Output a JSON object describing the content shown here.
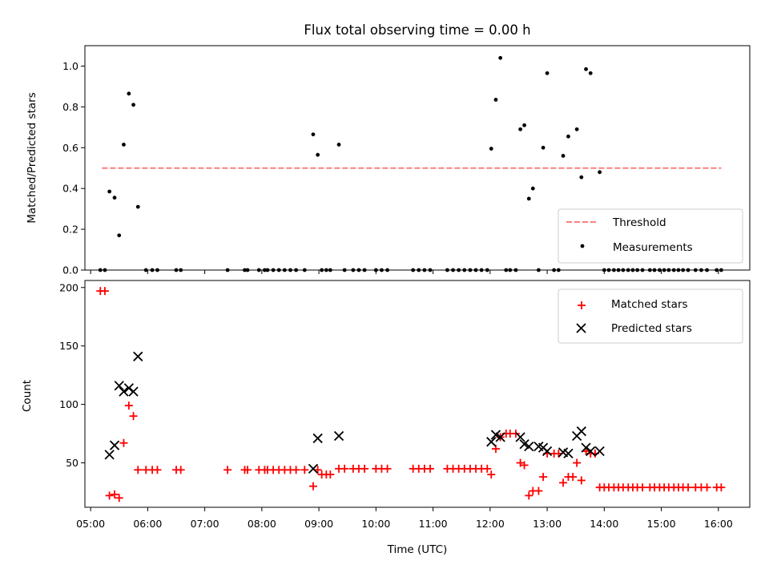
{
  "colors": {
    "threshold": "#ff7f7f",
    "measurement": "#000000",
    "matched": "#ff0000",
    "predicted": "#000000"
  },
  "chart_data": [
    {
      "type": "scatter",
      "title": "Flux total observing time = 0.00 h",
      "xlabel": "",
      "ylabel": "Matched/Predicted stars",
      "x_unit": "hours UTC",
      "xlim": [
        4.9,
        16.55
      ],
      "ylim": [
        0,
        1.1
      ],
      "yticks": [
        0.0,
        0.2,
        0.4,
        0.6,
        0.8,
        1.0
      ],
      "ytick_labels": [
        "0.0",
        "0.2",
        "0.4",
        "0.6",
        "0.8",
        "1.0"
      ],
      "legend_position": "lower right",
      "series": [
        {
          "name": "Threshold",
          "style": "dashed-line",
          "x": [
            5.2,
            16.05
          ],
          "values": [
            0.5,
            0.5
          ]
        },
        {
          "name": "Measurements",
          "style": "dot",
          "points": [
            [
              5.17,
              0
            ],
            [
              5.25,
              0
            ],
            [
              5.33,
              0.385
            ],
            [
              5.42,
              0.355
            ],
            [
              5.5,
              0.17
            ],
            [
              5.58,
              0.615
            ],
            [
              5.67,
              0.865
            ],
            [
              5.75,
              0.81
            ],
            [
              5.83,
              0.31
            ],
            [
              5.97,
              0
            ],
            [
              6.08,
              0
            ],
            [
              6.17,
              0
            ],
            [
              6.5,
              0
            ],
            [
              6.58,
              0
            ],
            [
              7.4,
              0
            ],
            [
              7.7,
              0
            ],
            [
              7.75,
              0
            ],
            [
              7.95,
              0
            ],
            [
              8.05,
              0
            ],
            [
              8.1,
              0
            ],
            [
              8.2,
              0
            ],
            [
              8.3,
              0
            ],
            [
              8.4,
              0
            ],
            [
              8.5,
              0
            ],
            [
              8.6,
              0
            ],
            [
              8.75,
              0
            ],
            [
              8.9,
              0.665
            ],
            [
              8.98,
              0.565
            ],
            [
              9.05,
              0
            ],
            [
              9.13,
              0
            ],
            [
              9.2,
              0
            ],
            [
              9.35,
              0.615
            ],
            [
              9.45,
              0
            ],
            [
              9.6,
              0
            ],
            [
              9.7,
              0
            ],
            [
              9.8,
              0
            ],
            [
              10.0,
              0
            ],
            [
              10.1,
              0
            ],
            [
              10.2,
              0
            ],
            [
              10.65,
              0
            ],
            [
              10.75,
              0
            ],
            [
              10.85,
              0
            ],
            [
              10.95,
              0
            ],
            [
              11.25,
              0
            ],
            [
              11.35,
              0
            ],
            [
              11.45,
              0
            ],
            [
              11.55,
              0
            ],
            [
              11.65,
              0
            ],
            [
              11.75,
              0
            ],
            [
              11.85,
              0
            ],
            [
              11.95,
              0
            ],
            [
              12.02,
              0.595
            ],
            [
              12.1,
              0.835
            ],
            [
              12.18,
              1.04
            ],
            [
              12.28,
              0
            ],
            [
              12.35,
              0
            ],
            [
              12.45,
              0
            ],
            [
              12.53,
              0.69
            ],
            [
              12.6,
              0.71
            ],
            [
              12.68,
              0.35
            ],
            [
              12.75,
              0.4
            ],
            [
              12.85,
              0
            ],
            [
              12.93,
              0.6
            ],
            [
              13.0,
              0.965
            ],
            [
              13.12,
              0
            ],
            [
              13.2,
              0
            ],
            [
              13.28,
              0.56
            ],
            [
              13.37,
              0.655
            ],
            [
              13.52,
              0.69
            ],
            [
              13.6,
              0.455
            ],
            [
              13.68,
              0.985
            ],
            [
              13.76,
              0.965
            ],
            [
              13.92,
              0.48
            ],
            [
              14.0,
              0
            ],
            [
              14.08,
              0
            ],
            [
              14.17,
              0
            ],
            [
              14.25,
              0
            ],
            [
              14.33,
              0
            ],
            [
              14.42,
              0
            ],
            [
              14.5,
              0
            ],
            [
              14.58,
              0
            ],
            [
              14.67,
              0
            ],
            [
              14.8,
              0
            ],
            [
              14.88,
              0
            ],
            [
              14.97,
              0
            ],
            [
              15.05,
              0
            ],
            [
              15.13,
              0
            ],
            [
              15.22,
              0
            ],
            [
              15.3,
              0
            ],
            [
              15.38,
              0
            ],
            [
              15.47,
              0
            ],
            [
              15.6,
              0
            ],
            [
              15.7,
              0
            ],
            [
              15.8,
              0
            ],
            [
              15.97,
              0
            ],
            [
              16.05,
              0
            ]
          ]
        }
      ]
    },
    {
      "type": "scatter",
      "title": "",
      "xlabel": "Time (UTC)",
      "ylabel": "Count",
      "x_unit": "hours UTC",
      "xlim": [
        4.9,
        16.55
      ],
      "ylim": [
        12,
        206
      ],
      "yticks": [
        50,
        100,
        150,
        200
      ],
      "ytick_labels": [
        "50",
        "100",
        "150",
        "200"
      ],
      "xticks": [
        5,
        6,
        7,
        8,
        9,
        10,
        11,
        12,
        13,
        14,
        15,
        16
      ],
      "xtick_labels": [
        "05:00",
        "06:00",
        "07:00",
        "08:00",
        "09:00",
        "10:00",
        "11:00",
        "12:00",
        "13:00",
        "14:00",
        "15:00",
        "16:00"
      ],
      "legend_position": "upper right",
      "series": [
        {
          "name": "Matched stars",
          "style": "plus",
          "points": [
            [
              5.17,
              197
            ],
            [
              5.25,
              197
            ],
            [
              5.33,
              22
            ],
            [
              5.42,
              23
            ],
            [
              5.5,
              20
            ],
            [
              5.58,
              67
            ],
            [
              5.67,
              99
            ],
            [
              5.75,
              90
            ],
            [
              5.83,
              44
            ],
            [
              5.97,
              44
            ],
            [
              6.08,
              44
            ],
            [
              6.17,
              44
            ],
            [
              6.5,
              44
            ],
            [
              6.58,
              44
            ],
            [
              7.4,
              44
            ],
            [
              7.7,
              44
            ],
            [
              7.75,
              44
            ],
            [
              7.95,
              44
            ],
            [
              8.05,
              44
            ],
            [
              8.1,
              44
            ],
            [
              8.2,
              44
            ],
            [
              8.3,
              44
            ],
            [
              8.4,
              44
            ],
            [
              8.5,
              44
            ],
            [
              8.6,
              44
            ],
            [
              8.75,
              44
            ],
            [
              8.9,
              30
            ],
            [
              8.98,
              44
            ],
            [
              9.05,
              40
            ],
            [
              9.13,
              40
            ],
            [
              9.2,
              40
            ],
            [
              9.35,
              45
            ],
            [
              9.45,
              45
            ],
            [
              9.6,
              45
            ],
            [
              9.7,
              45
            ],
            [
              9.8,
              45
            ],
            [
              10.0,
              45
            ],
            [
              10.1,
              45
            ],
            [
              10.2,
              45
            ],
            [
              10.65,
              45
            ],
            [
              10.75,
              45
            ],
            [
              10.85,
              45
            ],
            [
              10.95,
              45
            ],
            [
              11.25,
              45
            ],
            [
              11.35,
              45
            ],
            [
              11.45,
              45
            ],
            [
              11.55,
              45
            ],
            [
              11.65,
              45
            ],
            [
              11.75,
              45
            ],
            [
              11.85,
              45
            ],
            [
              11.95,
              45
            ],
            [
              12.02,
              40
            ],
            [
              12.1,
              62
            ],
            [
              12.18,
              72
            ],
            [
              12.28,
              75
            ],
            [
              12.35,
              75
            ],
            [
              12.45,
              75
            ],
            [
              12.53,
              50
            ],
            [
              12.6,
              48
            ],
            [
              12.68,
              22
            ],
            [
              12.75,
              26
            ],
            [
              12.85,
              26
            ],
            [
              12.93,
              38
            ],
            [
              13.0,
              58
            ],
            [
              13.12,
              58
            ],
            [
              13.2,
              58
            ],
            [
              13.28,
              33
            ],
            [
              13.37,
              38
            ],
            [
              13.45,
              38
            ],
            [
              13.52,
              50
            ],
            [
              13.6,
              35
            ],
            [
              13.68,
              60
            ],
            [
              13.76,
              58
            ],
            [
              13.84,
              58
            ],
            [
              13.92,
              29
            ],
            [
              14.0,
              29
            ],
            [
              14.08,
              29
            ],
            [
              14.17,
              29
            ],
            [
              14.25,
              29
            ],
            [
              14.33,
              29
            ],
            [
              14.42,
              29
            ],
            [
              14.5,
              29
            ],
            [
              14.58,
              29
            ],
            [
              14.67,
              29
            ],
            [
              14.8,
              29
            ],
            [
              14.88,
              29
            ],
            [
              14.97,
              29
            ],
            [
              15.05,
              29
            ],
            [
              15.13,
              29
            ],
            [
              15.22,
              29
            ],
            [
              15.3,
              29
            ],
            [
              15.38,
              29
            ],
            [
              15.47,
              29
            ],
            [
              15.6,
              29
            ],
            [
              15.7,
              29
            ],
            [
              15.8,
              29
            ],
            [
              15.97,
              29
            ],
            [
              16.05,
              29
            ]
          ]
        },
        {
          "name": "Predicted stars",
          "style": "x",
          "points": [
            [
              5.33,
              57
            ],
            [
              5.42,
              65
            ],
            [
              5.5,
              116
            ],
            [
              5.58,
              111
            ],
            [
              5.67,
              114
            ],
            [
              5.75,
              111
            ],
            [
              5.83,
              141
            ],
            [
              8.9,
              45
            ],
            [
              8.98,
              71
            ],
            [
              9.35,
              73
            ],
            [
              12.02,
              68
            ],
            [
              12.1,
              74
            ],
            [
              12.18,
              72
            ],
            [
              12.53,
              72
            ],
            [
              12.6,
              66
            ],
            [
              12.68,
              64
            ],
            [
              12.85,
              64
            ],
            [
              12.93,
              63
            ],
            [
              13.0,
              60
            ],
            [
              13.28,
              59
            ],
            [
              13.37,
              58
            ],
            [
              13.52,
              73
            ],
            [
              13.6,
              77
            ],
            [
              13.68,
              63
            ],
            [
              13.76,
              60
            ],
            [
              13.92,
              60
            ]
          ]
        }
      ]
    }
  ]
}
